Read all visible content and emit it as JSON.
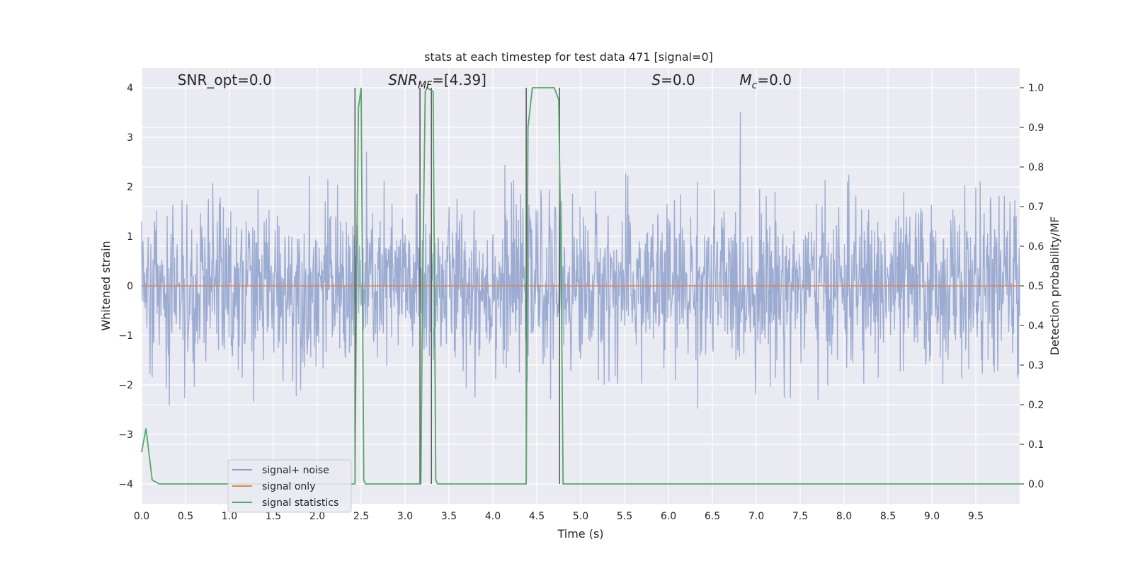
{
  "chart_data": {
    "type": "line",
    "title": "stats at each timestep for test data 471 [signal=0]",
    "xlabel": "Time (s)",
    "ylabel": "Whitened strain",
    "ylabel_right": "Detection probability/MF",
    "xlim": [
      0,
      10
    ],
    "ylim": [
      -4.4,
      4.4
    ],
    "ylim_right": [
      -0.05,
      1.05
    ],
    "x_ticks": [
      0.0,
      0.5,
      1.0,
      1.5,
      2.0,
      2.5,
      3.0,
      3.5,
      4.0,
      4.5,
      5.0,
      5.5,
      6.0,
      6.5,
      7.0,
      7.5,
      8.0,
      8.5,
      9.0,
      9.5
    ],
    "x_tick_labels": [
      "0.0",
      "0.5",
      "1.0",
      "1.5",
      "2.0",
      "2.5",
      "3.0",
      "3.5",
      "4.0",
      "4.5",
      "5.0",
      "5.5",
      "6.0",
      "6.5",
      "7.0",
      "7.5",
      "8.0",
      "8.5",
      "9.0",
      "9.5"
    ],
    "y_ticks": [
      -4,
      -3,
      -2,
      -1,
      0,
      1,
      2,
      3,
      4
    ],
    "y_tick_labels": [
      "−4",
      "−3",
      "−2",
      "−1",
      "0",
      "1",
      "2",
      "3",
      "4"
    ],
    "y_ticks_right": [
      0.0,
      0.1,
      0.2,
      0.3,
      0.4,
      0.5,
      0.6,
      0.7,
      0.8,
      0.9,
      1.0
    ],
    "y_tick_labels_right": [
      "0.0",
      "0.1",
      "0.2",
      "0.3",
      "0.4",
      "0.5",
      "0.6",
      "0.7",
      "0.8",
      "0.9",
      "1.0"
    ],
    "grid": true,
    "legend_position": "lower-left",
    "annotations": [
      {
        "text": "SNR_opt=0.0",
        "x": 0.2,
        "y": 4.1
      },
      {
        "text": "SNR",
        "sub": "MF",
        "suffix": "=[4.39]",
        "italic": true,
        "x": 2.6,
        "y": 4.1
      },
      {
        "text": "S",
        "suffix": "=0.0",
        "italic": true,
        "x": 5.6,
        "y": 4.1
      },
      {
        "text": "M",
        "sub": "c",
        "suffix": "=0.0",
        "italic": true,
        "x": 6.6,
        "y": 4.1
      }
    ],
    "series": [
      {
        "name": "signal+ noise",
        "color": "#8da0cb",
        "kind": "noise",
        "amplitude_sd": 0.82,
        "peak_range": [
          -4.0,
          4.0
        ]
      },
      {
        "name": "signal only",
        "color": "#dd8452",
        "kind": "flat",
        "value": 0
      },
      {
        "name": "signal statistics",
        "color": "#55a868",
        "kind": "probability",
        "x": [
          0.0,
          0.05,
          0.12,
          0.2,
          2.43,
          2.45,
          2.47,
          2.5,
          2.53,
          2.55,
          3.18,
          3.2,
          3.23,
          3.25,
          3.32,
          3.35,
          3.37,
          3.4,
          4.38,
          4.4,
          4.45,
          4.7,
          4.75,
          4.78,
          4.8,
          10.0
        ],
        "y": [
          0.08,
          0.14,
          0.01,
          0.0,
          0.0,
          0.6,
          0.95,
          1.0,
          0.01,
          0.0,
          0.0,
          0.5,
          0.99,
          1.0,
          0.99,
          0.01,
          0.0,
          0.0,
          0.0,
          0.9,
          1.0,
          1.0,
          0.97,
          0.5,
          0.0,
          0.0
        ]
      }
    ],
    "vertical_lines": [
      {
        "x": 2.43,
        "color": "#555555"
      },
      {
        "x": 3.17,
        "color": "#555555"
      },
      {
        "x": 3.3,
        "color": "#555555"
      },
      {
        "x": 4.38,
        "color": "#555555"
      },
      {
        "x": 4.76,
        "color": "#555555"
      }
    ]
  }
}
